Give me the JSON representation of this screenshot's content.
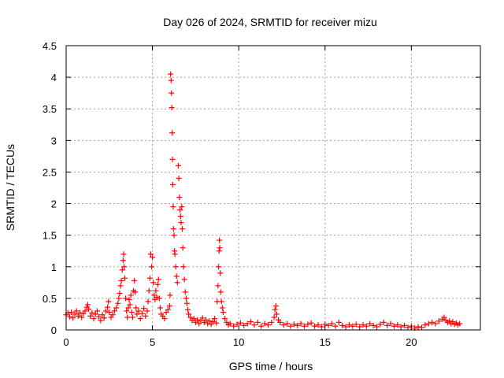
{
  "chart_data": {
    "type": "scatter",
    "title": "Day 026 of 2024, SRMTID for receiver mizu",
    "xlabel": "GPS time / hours",
    "ylabel": "SRMTID / TECUs",
    "xlim": [
      0,
      24
    ],
    "ylim": [
      0,
      4.5
    ],
    "x_ticks": [
      0,
      5,
      10,
      15,
      20
    ],
    "x_tick_labels": [
      "0",
      "5",
      "10",
      "15",
      "20"
    ],
    "y_ticks": [
      0,
      0.5,
      1,
      1.5,
      2,
      2.5,
      3,
      3.5,
      4,
      4.5
    ],
    "y_tick_labels": [
      "0",
      "0.5",
      "1",
      "1.5",
      "2",
      "2.5",
      "3",
      "3.5",
      "4",
      "4.5"
    ],
    "grid": true,
    "marker": "+",
    "color": "#ff0000",
    "series": [
      {
        "name": "SRMTID",
        "points": [
          [
            0.0,
            0.24
          ],
          [
            0.1,
            0.27
          ],
          [
            0.2,
            0.21
          ],
          [
            0.3,
            0.28
          ],
          [
            0.4,
            0.19
          ],
          [
            0.5,
            0.25
          ],
          [
            0.6,
            0.3
          ],
          [
            0.7,
            0.22
          ],
          [
            0.8,
            0.27
          ],
          [
            0.9,
            0.2
          ],
          [
            1.0,
            0.26
          ],
          [
            1.1,
            0.3
          ],
          [
            1.2,
            0.36
          ],
          [
            1.25,
            0.4
          ],
          [
            1.3,
            0.33
          ],
          [
            1.4,
            0.22
          ],
          [
            1.5,
            0.27
          ],
          [
            1.6,
            0.18
          ],
          [
            1.7,
            0.25
          ],
          [
            1.8,
            0.3
          ],
          [
            1.9,
            0.21
          ],
          [
            2.0,
            0.15
          ],
          [
            2.1,
            0.24
          ],
          [
            2.2,
            0.19
          ],
          [
            2.3,
            0.3
          ],
          [
            2.4,
            0.36
          ],
          [
            2.45,
            0.45
          ],
          [
            2.5,
            0.28
          ],
          [
            2.6,
            0.2
          ],
          [
            2.7,
            0.24
          ],
          [
            2.8,
            0.3
          ],
          [
            2.9,
            0.35
          ],
          [
            3.0,
            0.42
          ],
          [
            3.05,
            0.5
          ],
          [
            3.1,
            0.58
          ],
          [
            3.15,
            0.7
          ],
          [
            3.2,
            0.78
          ],
          [
            3.25,
            0.95
          ],
          [
            3.3,
            1.1
          ],
          [
            3.33,
            1.2
          ],
          [
            3.36,
            1.0
          ],
          [
            3.4,
            0.82
          ],
          [
            3.45,
            0.5
          ],
          [
            3.5,
            0.3
          ],
          [
            3.55,
            0.2
          ],
          [
            3.6,
            0.35
          ],
          [
            3.65,
            0.48
          ],
          [
            3.7,
            0.4
          ],
          [
            3.75,
            0.55
          ],
          [
            3.8,
            0.28
          ],
          [
            3.85,
            0.2
          ],
          [
            3.9,
            0.62
          ],
          [
            3.95,
            0.78
          ],
          [
            4.0,
            0.6
          ],
          [
            4.05,
            0.35
          ],
          [
            4.1,
            0.25
          ],
          [
            4.2,
            0.3
          ],
          [
            4.3,
            0.18
          ],
          [
            4.4,
            0.26
          ],
          [
            4.5,
            0.34
          ],
          [
            4.6,
            0.22
          ],
          [
            4.7,
            0.3
          ],
          [
            4.75,
            0.45
          ],
          [
            4.8,
            0.62
          ],
          [
            4.85,
            0.82
          ],
          [
            4.9,
            1.2
          ],
          [
            4.95,
            1.0
          ],
          [
            5.0,
            1.15
          ],
          [
            5.05,
            0.75
          ],
          [
            5.1,
            0.55
          ],
          [
            5.15,
            0.48
          ],
          [
            5.2,
            0.62
          ],
          [
            5.25,
            0.52
          ],
          [
            5.3,
            0.72
          ],
          [
            5.35,
            0.8
          ],
          [
            5.4,
            0.5
          ],
          [
            5.45,
            0.35
          ],
          [
            5.5,
            0.25
          ],
          [
            5.6,
            0.22
          ],
          [
            5.7,
            0.18
          ],
          [
            5.8,
            0.28
          ],
          [
            5.9,
            0.32
          ],
          [
            6.0,
            0.38
          ],
          [
            6.02,
            0.55
          ],
          [
            6.05,
            4.05
          ],
          [
            6.08,
            3.95
          ],
          [
            6.1,
            3.75
          ],
          [
            6.12,
            3.52
          ],
          [
            6.14,
            3.12
          ],
          [
            6.16,
            2.7
          ],
          [
            6.18,
            2.3
          ],
          [
            6.2,
            1.95
          ],
          [
            6.22,
            1.6
          ],
          [
            6.25,
            1.5
          ],
          [
            6.28,
            1.25
          ],
          [
            6.3,
            1.2
          ],
          [
            6.35,
            1.0
          ],
          [
            6.4,
            0.85
          ],
          [
            6.45,
            0.75
          ],
          [
            6.5,
            2.6
          ],
          [
            6.53,
            2.4
          ],
          [
            6.56,
            2.1
          ],
          [
            6.6,
            1.9
          ],
          [
            6.63,
            1.8
          ],
          [
            6.66,
            1.7
          ],
          [
            6.7,
            1.95
          ],
          [
            6.73,
            1.6
          ],
          [
            6.76,
            1.3
          ],
          [
            6.8,
            1.0
          ],
          [
            6.85,
            0.8
          ],
          [
            6.9,
            0.6
          ],
          [
            6.95,
            0.5
          ],
          [
            7.0,
            0.42
          ],
          [
            7.05,
            0.32
          ],
          [
            7.1,
            0.25
          ],
          [
            7.2,
            0.2
          ],
          [
            7.3,
            0.15
          ],
          [
            7.4,
            0.18
          ],
          [
            7.5,
            0.12
          ],
          [
            7.6,
            0.16
          ],
          [
            7.7,
            0.1
          ],
          [
            7.8,
            0.15
          ],
          [
            7.9,
            0.19
          ],
          [
            8.0,
            0.12
          ],
          [
            8.1,
            0.16
          ],
          [
            8.2,
            0.1
          ],
          [
            8.3,
            0.14
          ],
          [
            8.4,
            0.09
          ],
          [
            8.5,
            0.13
          ],
          [
            8.6,
            0.18
          ],
          [
            8.7,
            0.11
          ],
          [
            8.75,
            0.45
          ],
          [
            8.8,
            0.7
          ],
          [
            8.83,
            1.0
          ],
          [
            8.86,
            1.25
          ],
          [
            8.88,
            1.42
          ],
          [
            8.9,
            1.3
          ],
          [
            8.93,
            0.9
          ],
          [
            8.96,
            0.6
          ],
          [
            9.0,
            0.45
          ],
          [
            9.05,
            0.35
          ],
          [
            9.1,
            0.28
          ],
          [
            9.2,
            0.18
          ],
          [
            9.3,
            0.12
          ],
          [
            9.4,
            0.08
          ],
          [
            9.5,
            0.1
          ],
          [
            9.7,
            0.06
          ],
          [
            9.9,
            0.09
          ],
          [
            10.1,
            0.11
          ],
          [
            10.3,
            0.07
          ],
          [
            10.5,
            0.1
          ],
          [
            10.7,
            0.13
          ],
          [
            10.9,
            0.08
          ],
          [
            11.1,
            0.12
          ],
          [
            11.3,
            0.06
          ],
          [
            11.5,
            0.1
          ],
          [
            11.7,
            0.08
          ],
          [
            11.9,
            0.12
          ],
          [
            12.05,
            0.2
          ],
          [
            12.1,
            0.32
          ],
          [
            12.15,
            0.38
          ],
          [
            12.2,
            0.25
          ],
          [
            12.3,
            0.16
          ],
          [
            12.4,
            0.12
          ],
          [
            12.6,
            0.08
          ],
          [
            12.8,
            0.1
          ],
          [
            13.0,
            0.06
          ],
          [
            13.2,
            0.09
          ],
          [
            13.4,
            0.07
          ],
          [
            13.6,
            0.1
          ],
          [
            13.8,
            0.06
          ],
          [
            14.0,
            0.09
          ],
          [
            14.2,
            0.11
          ],
          [
            14.4,
            0.06
          ],
          [
            14.6,
            0.08
          ],
          [
            14.8,
            0.05
          ],
          [
            15.0,
            0.09
          ],
          [
            15.2,
            0.07
          ],
          [
            15.4,
            0.1
          ],
          [
            15.6,
            0.06
          ],
          [
            15.8,
            0.12
          ],
          [
            16.0,
            0.07
          ],
          [
            16.2,
            0.05
          ],
          [
            16.4,
            0.08
          ],
          [
            16.6,
            0.06
          ],
          [
            16.8,
            0.09
          ],
          [
            17.0,
            0.05
          ],
          [
            17.2,
            0.08
          ],
          [
            17.4,
            0.06
          ],
          [
            17.6,
            0.1
          ],
          [
            17.8,
            0.07
          ],
          [
            18.0,
            0.05
          ],
          [
            18.2,
            0.09
          ],
          [
            18.4,
            0.12
          ],
          [
            18.6,
            0.07
          ],
          [
            18.8,
            0.1
          ],
          [
            19.0,
            0.06
          ],
          [
            19.2,
            0.08
          ],
          [
            19.4,
            0.05
          ],
          [
            19.6,
            0.07
          ],
          [
            19.8,
            0.04
          ],
          [
            20.0,
            0.06
          ],
          [
            20.2,
            0.03
          ],
          [
            20.4,
            0.05
          ],
          [
            20.6,
            0.04
          ],
          [
            20.8,
            0.08
          ],
          [
            21.0,
            0.1
          ],
          [
            21.2,
            0.12
          ],
          [
            21.4,
            0.1
          ],
          [
            21.6,
            0.14
          ],
          [
            21.8,
            0.17
          ],
          [
            21.9,
            0.2
          ],
          [
            22.0,
            0.15
          ],
          [
            22.1,
            0.12
          ],
          [
            22.2,
            0.14
          ],
          [
            22.3,
            0.1
          ],
          [
            22.4,
            0.13
          ],
          [
            22.5,
            0.09
          ],
          [
            22.6,
            0.11
          ],
          [
            22.7,
            0.08
          ],
          [
            22.8,
            0.1
          ]
        ]
      }
    ]
  }
}
